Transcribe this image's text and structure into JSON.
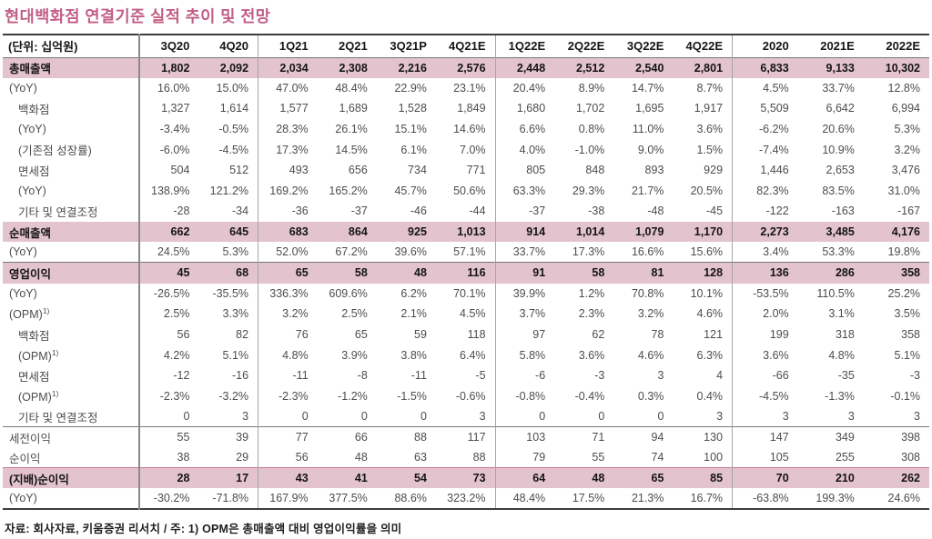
{
  "title": "현대백화점 연결기준 실적 추이 및 전망",
  "colors": {
    "title_pink": "#c25e85",
    "row_highlight": "#e3c3ce",
    "section_line": "#777777",
    "outer_border": "#3c3c3c"
  },
  "footer": "자료: 회사자료, 키움증권 리서치 / 주: 1) OPM은 총매출액 대비 영업이익률을 의미",
  "table": {
    "unit_label": "(단위: 십억원)",
    "columns": [
      "3Q20",
      "4Q20",
      "1Q21",
      "2Q21",
      "3Q21P",
      "4Q21E",
      "1Q22E",
      "2Q22E",
      "3Q22E",
      "4Q22E",
      "2020",
      "2021E",
      "2022E"
    ],
    "group_start_indices": [
      2,
      6,
      10
    ],
    "rows": [
      {
        "label": "총매출액",
        "highlight": true,
        "indent": 0,
        "values": [
          "1,802",
          "2,092",
          "2,034",
          "2,308",
          "2,216",
          "2,576",
          "2,448",
          "2,512",
          "2,540",
          "2,801",
          "6,833",
          "9,133",
          "10,302"
        ]
      },
      {
        "label": "(YoY)",
        "indent": 0,
        "values": [
          "16.0%",
          "15.0%",
          "47.0%",
          "48.4%",
          "22.9%",
          "23.1%",
          "20.4%",
          "8.9%",
          "14.7%",
          "8.7%",
          "4.5%",
          "33.7%",
          "12.8%"
        ]
      },
      {
        "label": "백화점",
        "indent": 1,
        "values": [
          "1,327",
          "1,614",
          "1,577",
          "1,689",
          "1,528",
          "1,849",
          "1,680",
          "1,702",
          "1,695",
          "1,917",
          "5,509",
          "6,642",
          "6,994"
        ]
      },
      {
        "label": "(YoY)",
        "indent": 1,
        "values": [
          "-3.4%",
          "-0.5%",
          "28.3%",
          "26.1%",
          "15.1%",
          "14.6%",
          "6.6%",
          "0.8%",
          "11.0%",
          "3.6%",
          "-6.2%",
          "20.6%",
          "5.3%"
        ]
      },
      {
        "label": "(기존점 성장률)",
        "indent": 1,
        "values": [
          "-6.0%",
          "-4.5%",
          "17.3%",
          "14.5%",
          "6.1%",
          "7.0%",
          "4.0%",
          "-1.0%",
          "9.0%",
          "1.5%",
          "-7.4%",
          "10.9%",
          "3.2%"
        ]
      },
      {
        "label": "면세점",
        "indent": 1,
        "values": [
          "504",
          "512",
          "493",
          "656",
          "734",
          "771",
          "805",
          "848",
          "893",
          "929",
          "1,446",
          "2,653",
          "3,476"
        ]
      },
      {
        "label": "(YoY)",
        "indent": 1,
        "values": [
          "138.9%",
          "121.2%",
          "169.2%",
          "165.2%",
          "45.7%",
          "50.6%",
          "63.3%",
          "29.3%",
          "21.7%",
          "20.5%",
          "82.3%",
          "83.5%",
          "31.0%"
        ]
      },
      {
        "label": "기타 및 연결조정",
        "indent": 1,
        "values": [
          "-28",
          "-34",
          "-36",
          "-37",
          "-46",
          "-44",
          "-37",
          "-38",
          "-48",
          "-45",
          "-122",
          "-163",
          "-167"
        ]
      },
      {
        "label": "순매출액",
        "highlight": true,
        "indent": 0,
        "values": [
          "662",
          "645",
          "683",
          "864",
          "925",
          "1,013",
          "914",
          "1,014",
          "1,079",
          "1,170",
          "2,273",
          "3,485",
          "4,176"
        ]
      },
      {
        "label": "(YoY)",
        "indent": 0,
        "values": [
          "24.5%",
          "5.3%",
          "52.0%",
          "67.2%",
          "39.6%",
          "57.1%",
          "33.7%",
          "17.3%",
          "16.6%",
          "15.6%",
          "3.4%",
          "53.3%",
          "19.8%"
        ]
      },
      {
        "label": "영업이익",
        "highlight": true,
        "indent": 0,
        "border_top": "strong",
        "values": [
          "45",
          "68",
          "65",
          "58",
          "48",
          "116",
          "91",
          "58",
          "81",
          "128",
          "136",
          "286",
          "358"
        ]
      },
      {
        "label": "(YoY)",
        "indent": 0,
        "values": [
          "-26.5%",
          "-35.5%",
          "336.3%",
          "609.6%",
          "6.2%",
          "70.1%",
          "39.9%",
          "1.2%",
          "70.8%",
          "10.1%",
          "-53.5%",
          "110.5%",
          "25.2%"
        ]
      },
      {
        "label": "(OPM)",
        "sup": "1)",
        "indent": 0,
        "values": [
          "2.5%",
          "3.3%",
          "3.2%",
          "2.5%",
          "2.1%",
          "4.5%",
          "3.7%",
          "2.3%",
          "3.2%",
          "4.6%",
          "2.0%",
          "3.1%",
          "3.5%"
        ]
      },
      {
        "label": "백화점",
        "indent": 1,
        "values": [
          "56",
          "82",
          "76",
          "65",
          "59",
          "118",
          "97",
          "62",
          "78",
          "121",
          "199",
          "318",
          "358"
        ]
      },
      {
        "label": "(OPM)",
        "sup": "1)",
        "indent": 1,
        "values": [
          "4.2%",
          "5.1%",
          "4.8%",
          "3.9%",
          "3.8%",
          "6.4%",
          "5.8%",
          "3.6%",
          "4.6%",
          "6.3%",
          "3.6%",
          "4.8%",
          "5.1%"
        ]
      },
      {
        "label": "면세점",
        "indent": 1,
        "values": [
          "-12",
          "-16",
          "-11",
          "-8",
          "-11",
          "-5",
          "-6",
          "-3",
          "3",
          "4",
          "-66",
          "-35",
          "-3"
        ]
      },
      {
        "label": "(OPM)",
        "sup": "1)",
        "indent": 1,
        "values": [
          "-2.3%",
          "-3.2%",
          "-2.3%",
          "-1.2%",
          "-1.5%",
          "-0.6%",
          "-0.8%",
          "-0.4%",
          "0.3%",
          "0.4%",
          "-4.5%",
          "-1.3%",
          "-0.1%"
        ]
      },
      {
        "label": "기타 및 연결조정",
        "indent": 1,
        "values": [
          "0",
          "3",
          "0",
          "0",
          "0",
          "3",
          "0",
          "0",
          "0",
          "3",
          "3",
          "3",
          "3"
        ]
      },
      {
        "label": "세전이익",
        "indent": 0,
        "border_top": "strong",
        "values": [
          "55",
          "39",
          "77",
          "66",
          "88",
          "117",
          "103",
          "71",
          "94",
          "130",
          "147",
          "349",
          "398"
        ]
      },
      {
        "label": "순이익",
        "indent": 0,
        "values": [
          "38",
          "29",
          "56",
          "48",
          "63",
          "88",
          "79",
          "55",
          "74",
          "100",
          "105",
          "255",
          "308"
        ]
      },
      {
        "label": "(지배)순이익",
        "highlight": true,
        "indent": 0,
        "border_top": "rose",
        "values": [
          "28",
          "17",
          "43",
          "41",
          "54",
          "73",
          "64",
          "48",
          "65",
          "85",
          "70",
          "210",
          "262"
        ]
      },
      {
        "label": "(YoY)",
        "indent": 0,
        "values": [
          "-30.2%",
          "-71.8%",
          "167.9%",
          "377.5%",
          "88.6%",
          "323.2%",
          "48.4%",
          "17.5%",
          "21.3%",
          "16.7%",
          "-63.8%",
          "199.3%",
          "24.6%"
        ]
      }
    ]
  }
}
